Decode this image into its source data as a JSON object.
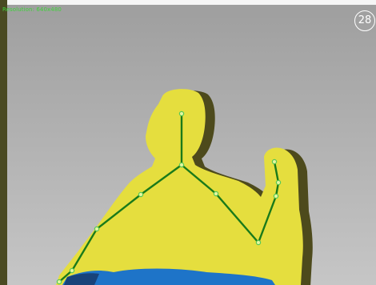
{
  "resolution_label": "Resolution: 640x480",
  "frame_counter": "28",
  "colors": {
    "background": "#a9a9a9",
    "body_fill": "#e5de3e",
    "body_shadow": "#4d4a1c",
    "left_border": "#4a4a22",
    "floor_blue": "#1e74c8",
    "skeleton_line": "#1a7a1a",
    "joint_stroke": "#7cf07c",
    "overlay_text": "#3fd23a",
    "counter_text": "#ffffff"
  },
  "skeleton": {
    "bones": [
      "head-neck",
      "neck-shoulder-right",
      "neck-shoulder-left",
      "shoulder-right-elbow-right",
      "elbow-right-hand-right",
      "shoulder-left-elbow-left",
      "elbow-left-wrist-left",
      "wrist-left-hand-left",
      "hand-left-fingertip-left"
    ],
    "joints": [
      "head",
      "neck",
      "shoulder-right",
      "elbow-right",
      "hand-right",
      "shoulder-left",
      "elbow-left",
      "wrist-left",
      "hand-left",
      "fingertip-left"
    ]
  }
}
